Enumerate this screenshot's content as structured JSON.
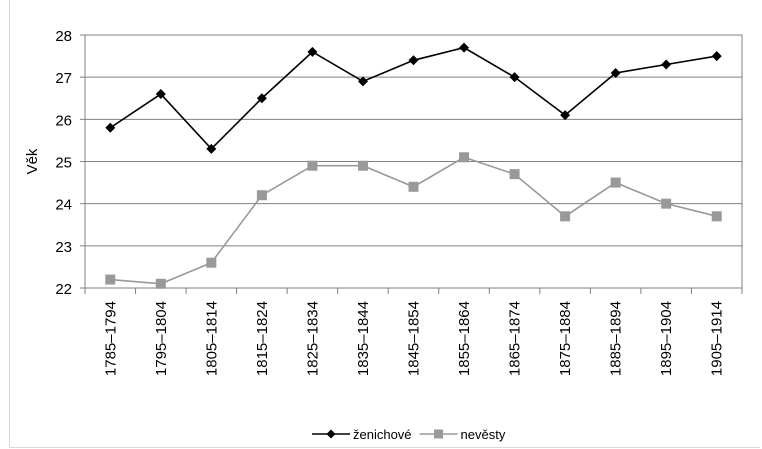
{
  "chart_data": {
    "type": "line",
    "ylabel": "Věk",
    "xlabel": "",
    "ylim": [
      22,
      28
    ],
    "yticks": [
      22,
      23,
      24,
      25,
      26,
      27,
      28
    ],
    "grid": "horizontal",
    "legend_position": "bottom",
    "categories": [
      "1785–1794",
      "1795–1804",
      "1805–1814",
      "1815–1824",
      "1825–1834",
      "1835–1844",
      "1845–1854",
      "1855–1864",
      "1865–1874",
      "1875–1884",
      "1885–1894",
      "1895–1904",
      "1905–1914"
    ],
    "series": [
      {
        "name": "ženichové",
        "color": "#000000",
        "marker": "diamond",
        "values": [
          25.8,
          26.6,
          25.3,
          26.5,
          27.6,
          26.9,
          27.4,
          27.7,
          27.0,
          26.1,
          27.1,
          27.3,
          27.5
        ]
      },
      {
        "name": "nevěsty",
        "color": "#999999",
        "marker": "square",
        "values": [
          22.2,
          22.1,
          22.6,
          24.2,
          24.9,
          24.9,
          24.4,
          25.1,
          24.7,
          23.7,
          24.5,
          24.0,
          23.7
        ]
      }
    ]
  }
}
